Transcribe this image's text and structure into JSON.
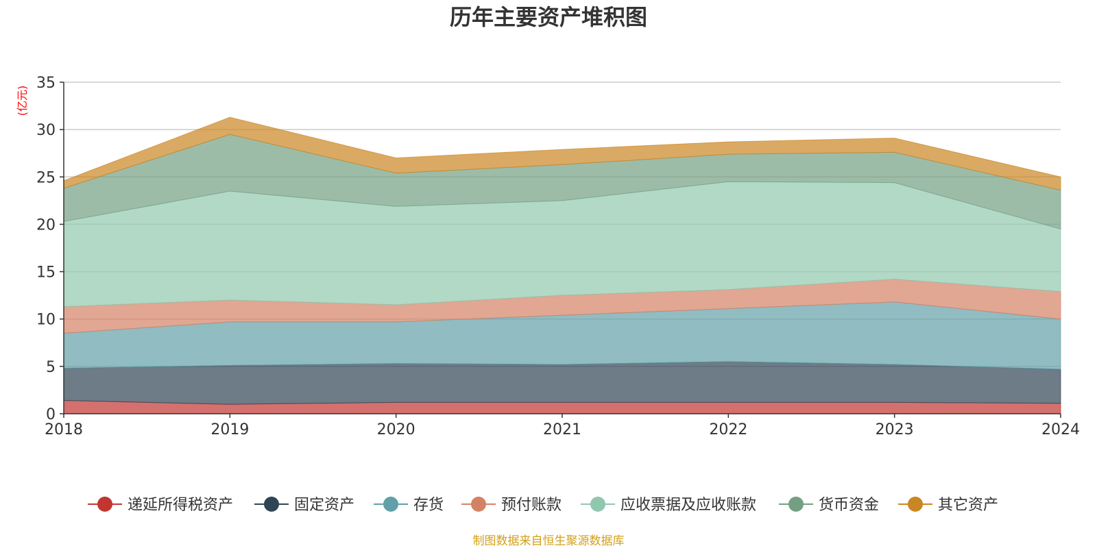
{
  "chart_data": {
    "type": "area",
    "stacked": true,
    "title": "历年主要资产堆积图",
    "ylabel": "(亿元)",
    "xlabel": "",
    "x": [
      "2018",
      "2019",
      "2020",
      "2021",
      "2022",
      "2023",
      "2024"
    ],
    "ylim": [
      0,
      35
    ],
    "yticks": [
      0,
      5,
      10,
      15,
      20,
      25,
      30,
      35
    ],
    "grid": true,
    "legend_position": "bottom",
    "series": [
      {
        "name": "递延所得税资产",
        "color": "#c23531",
        "values": [
          1.4,
          1.0,
          1.2,
          1.2,
          1.2,
          1.2,
          1.1
        ]
      },
      {
        "name": "固定资产",
        "color": "#2f4554",
        "values": [
          3.4,
          4.1,
          4.1,
          4.0,
          4.3,
          4.0,
          3.6
        ]
      },
      {
        "name": "存货",
        "color": "#61a0a8",
        "values": [
          3.7,
          4.6,
          4.4,
          5.2,
          5.6,
          6.6,
          5.3
        ]
      },
      {
        "name": "预付账款",
        "color": "#d48265",
        "values": [
          2.8,
          2.3,
          1.8,
          2.1,
          2.0,
          2.4,
          2.9
        ]
      },
      {
        "name": "应收票据及应收账款",
        "color": "#91c7ae",
        "values": [
          9.0,
          11.5,
          10.4,
          10.0,
          11.4,
          10.2,
          6.6
        ]
      },
      {
        "name": "货币资金",
        "color": "#749f83",
        "values": [
          3.5,
          6.0,
          3.5,
          3.8,
          2.9,
          3.2,
          4.1
        ]
      },
      {
        "name": "其它资产",
        "color": "#ca8622",
        "values": [
          0.8,
          1.8,
          1.6,
          1.6,
          1.3,
          1.5,
          1.4
        ]
      }
    ]
  },
  "footer": {
    "source": "制图数据来自恒生聚源数据库"
  }
}
